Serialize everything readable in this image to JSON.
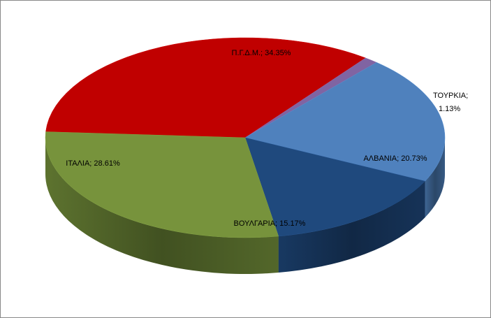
{
  "chart_data": {
    "type": "pie",
    "title": "",
    "slices": [
      {
        "name": "Π.Γ.Δ.Μ.",
        "value": 34.35,
        "label": "Π.Γ.Δ.Μ.; 34.35%",
        "color": "#c00000"
      },
      {
        "name": "ΤΟΥΡΚΙΑ",
        "value": 1.13,
        "label_line1": "ΤΟΥΡΚΙΑ;",
        "label_line2": "1.13%",
        "color": "#8064a2"
      },
      {
        "name": "ΑΛΒΑΝΙΑ",
        "value": 20.73,
        "label": "ΑΛΒΑΝΙΑ; 20.73%",
        "color": "#4f81bd"
      },
      {
        "name": "ΒΟΥΛΓΑΡΙΑ",
        "value": 15.17,
        "label": "ΒΟΥΛΓΑΡΙΑ; 15.17%",
        "color": "#1f497d"
      },
      {
        "name": "ΙΤΑΛΙΑ",
        "value": 28.61,
        "label": "ΙΤΑΛΙΑ; 28.61%",
        "color": "#77933c"
      }
    ],
    "legend": "none",
    "style": "3d-pie"
  }
}
